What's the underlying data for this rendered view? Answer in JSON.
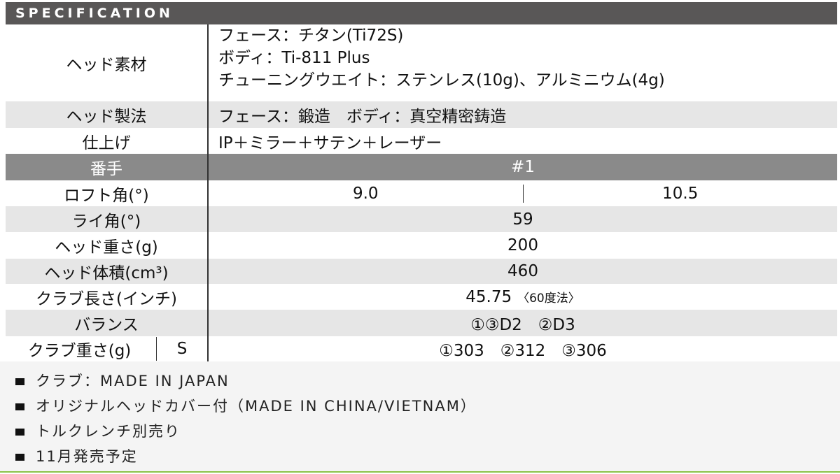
{
  "title": "SPECIFICATION",
  "rows": {
    "material": {
      "label": "ヘッド素材",
      "lines": [
        "フェース：チタン(Ti72S)",
        "ボディ：Ti-811 Plus",
        "チューニングウエイト：ステンレス(10g)、アルミニウム(4g)"
      ]
    },
    "method": {
      "label": "ヘッド製法",
      "value": "フェース：鍛造　ボディ：真空精密鋳造"
    },
    "finish": {
      "label": "仕上げ",
      "value": "IP＋ミラー＋サテン＋レーザー"
    },
    "number": {
      "label": "番手",
      "value": "#1"
    },
    "loft": {
      "label": "ロフト角(°)",
      "values": [
        "9.0",
        "10.5"
      ]
    },
    "lie": {
      "label": "ライ角(°)",
      "value": "59"
    },
    "head_weight": {
      "label": "ヘッド重さ(g)",
      "value": "200"
    },
    "volume": {
      "label": "ヘッド体積(cm³)",
      "value": "460"
    },
    "length": {
      "label": "クラブ長さ(インチ)",
      "value": "45.75",
      "note": "〈60度法〉"
    },
    "balance": {
      "label": "バランス",
      "value": "①③D2　②D3"
    },
    "club_weight": {
      "label": "クラブ重さ(g)",
      "flex": "S",
      "value": "①303　②312　③306"
    }
  },
  "notes": [
    "クラブ：MADE IN JAPAN",
    "オリジナルヘッドカバー付（MADE IN CHINA/VIETNAM）",
    "トルクレンチ別売り",
    "11月発売予定"
  ]
}
